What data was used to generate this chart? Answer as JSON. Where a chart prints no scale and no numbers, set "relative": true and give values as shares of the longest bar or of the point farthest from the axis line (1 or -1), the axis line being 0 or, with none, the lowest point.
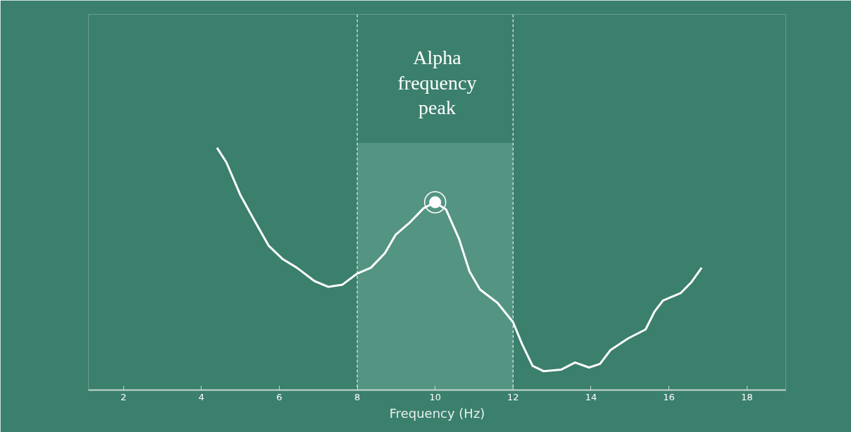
{
  "chart_data": {
    "type": "line",
    "relative": true,
    "xlabel": "Frequency (Hz)",
    "xlim": [
      1.1,
      19.0
    ],
    "xticks": [
      2,
      4,
      6,
      8,
      10,
      12,
      14,
      16,
      18
    ],
    "grid": false,
    "tick_labels": "x",
    "series": [
      {
        "color": "#ffffff",
        "line_style": "solid",
        "marker": "none",
        "x": [
          4.4,
          4.64,
          5.0,
          5.36,
          5.73,
          6.09,
          6.45,
          6.9,
          7.26,
          7.62,
          7.99,
          8.35,
          8.71,
          8.98,
          9.34,
          9.7,
          9.99,
          10.28,
          10.61,
          10.88,
          11.15,
          11.6,
          12.0,
          12.23,
          12.5,
          12.78,
          13.23,
          13.59,
          13.95,
          14.23,
          14.5,
          14.95,
          15.4,
          15.63,
          15.85,
          16.3,
          16.57,
          16.84
        ],
        "values": [
          1.0,
          0.94,
          0.805,
          0.7,
          0.595,
          0.54,
          0.505,
          0.45,
          0.426,
          0.435,
          0.48,
          0.505,
          0.565,
          0.64,
          0.69,
          0.75,
          0.775,
          0.745,
          0.625,
          0.49,
          0.415,
          0.36,
          0.28,
          0.19,
          0.1,
          0.078,
          0.084,
          0.114,
          0.093,
          0.108,
          0.165,
          0.213,
          0.25,
          0.324,
          0.37,
          0.4,
          0.444,
          0.505
        ]
      },
      {
        "type": "scatter",
        "color": "#ffffff",
        "marker": "circle",
        "x": [
          10.0
        ],
        "values": [
          0.775
        ]
      }
    ],
    "bands": [
      {
        "axis": "x",
        "from": 8,
        "to": 12,
        "color": "#5a9a88"
      }
    ],
    "ref_lines": [
      {
        "axis": "x",
        "value": 8,
        "line_style": "dashed",
        "color": "#e0ece8"
      },
      {
        "axis": "x",
        "value": 12,
        "line_style": "dashed",
        "color": "#e0ece8"
      }
    ],
    "annotations": [
      "Alpha frequency peak"
    ]
  }
}
